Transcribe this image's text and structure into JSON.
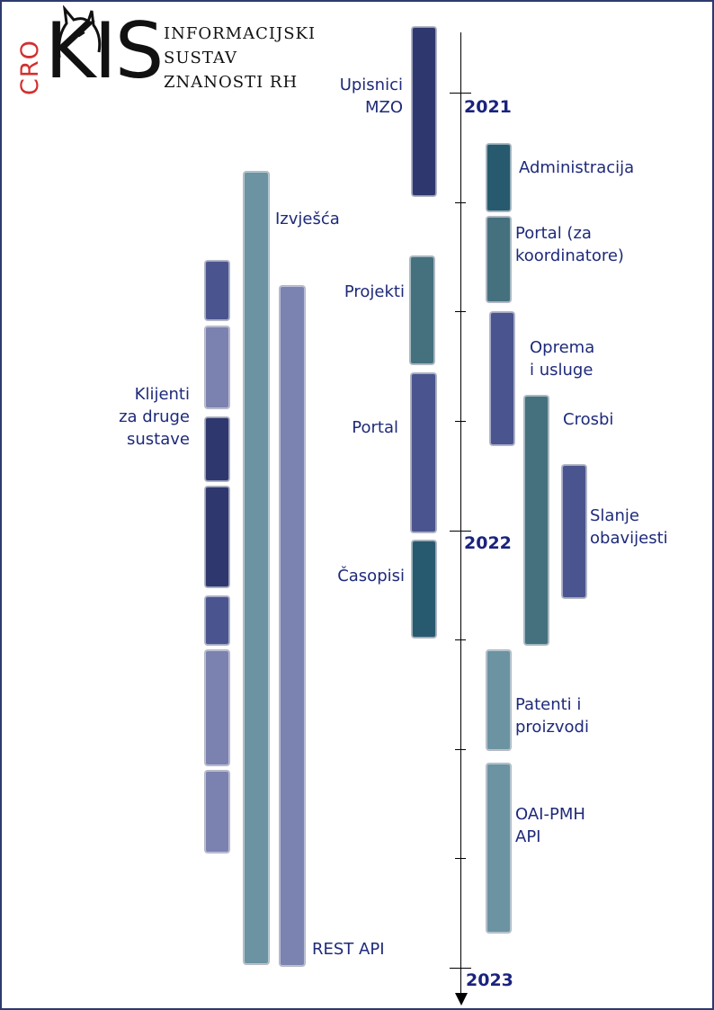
{
  "logo": {
    "mark_prefix": "CRO",
    "mark": "KIS",
    "lines": [
      "INFORMACIJSKI",
      "SUSTAV",
      "ZNANOSTI RH"
    ]
  },
  "colors": {
    "frame": "#2e3a6e",
    "label": "#1e2a7a",
    "year": "#1a237e",
    "logo_red": "#d32f2f"
  },
  "years": [
    "2021",
    "2022",
    "2023"
  ],
  "labels": {
    "upisnici": "Upisnici\nMZO",
    "administracija": "Administracija",
    "izvjesca": "Izvješća",
    "portal_koord": "Portal (za\nkoordinatore)",
    "projekti": "Projekti",
    "oprema": "Oprema\ni usluge",
    "klijenti": "Klijenti\nza druge\nsustave",
    "portal": "Portal",
    "crosbi": "Crosbi",
    "slanje": "Slanje\nobavijesti",
    "casopisi": "Časopisi",
    "patenti": "Patenti i\nproizvodi",
    "oai": "OAI-PMH\nAPI",
    "rest": "REST API"
  }
}
